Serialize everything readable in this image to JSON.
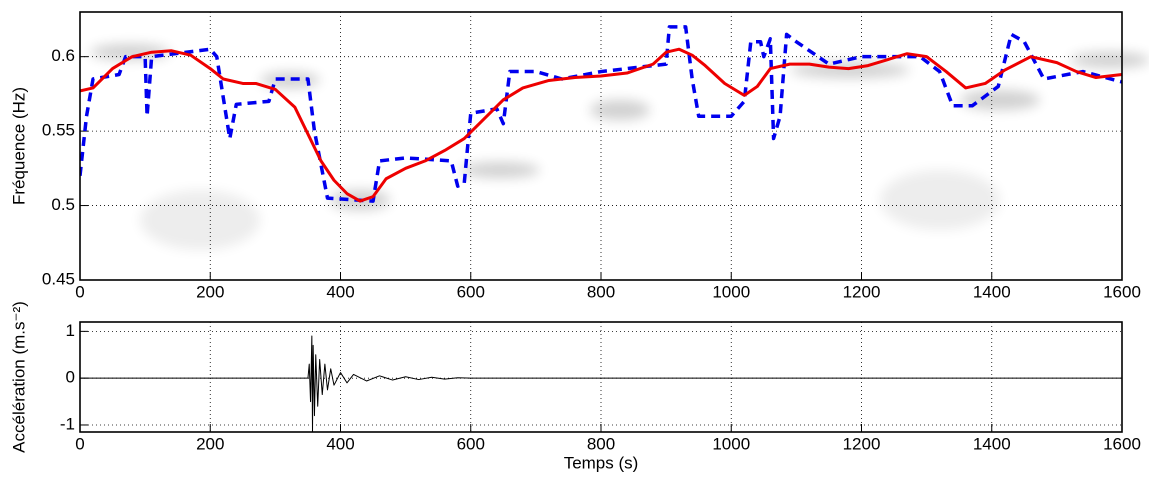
{
  "chart_data": [
    {
      "type": "line",
      "ylabel": "Fréquence (Hz)",
      "xlim": [
        0,
        1600
      ],
      "xticks": [
        0,
        200,
        400,
        600,
        800,
        1000,
        1200,
        1400,
        1600
      ],
      "ylim": [
        0.45,
        0.63
      ],
      "yticks": [
        0.45,
        0.5,
        0.55,
        0.6
      ],
      "grid": true,
      "series": [
        {
          "color": "#0000ee",
          "dashed": true,
          "x": [
            0,
            10,
            20,
            60,
            70,
            100,
            103,
            110,
            200,
            210,
            230,
            240,
            290,
            300,
            350,
            360,
            380,
            450,
            460,
            500,
            570,
            580,
            590,
            600,
            640,
            650,
            660,
            700,
            740,
            800,
            840,
            900,
            905,
            930,
            940,
            950,
            1000,
            1020,
            1030,
            1045,
            1050,
            1060,
            1065,
            1075,
            1085,
            1100,
            1150,
            1200,
            1290,
            1320,
            1340,
            1370,
            1410,
            1430,
            1450,
            1480,
            1540,
            1600
          ],
          "values": [
            0.52,
            0.56,
            0.585,
            0.588,
            0.6,
            0.6,
            0.56,
            0.6,
            0.605,
            0.6,
            0.545,
            0.568,
            0.57,
            0.585,
            0.585,
            0.55,
            0.505,
            0.503,
            0.53,
            0.532,
            0.53,
            0.513,
            0.515,
            0.562,
            0.565,
            0.555,
            0.59,
            0.59,
            0.585,
            0.59,
            0.592,
            0.595,
            0.62,
            0.62,
            0.585,
            0.56,
            0.56,
            0.57,
            0.61,
            0.61,
            0.6,
            0.612,
            0.545,
            0.56,
            0.615,
            0.61,
            0.595,
            0.6,
            0.6,
            0.59,
            0.567,
            0.567,
            0.58,
            0.615,
            0.61,
            0.585,
            0.59,
            0.583
          ]
        },
        {
          "color": "#ee0000",
          "dashed": false,
          "x": [
            0,
            20,
            50,
            80,
            110,
            140,
            170,
            200,
            220,
            250,
            270,
            300,
            330,
            350,
            370,
            390,
            410,
            430,
            450,
            470,
            500,
            530,
            560,
            590,
            620,
            650,
            680,
            720,
            760,
            800,
            840,
            880,
            900,
            920,
            940,
            960,
            990,
            1020,
            1040,
            1060,
            1090,
            1120,
            1150,
            1180,
            1210,
            1240,
            1270,
            1300,
            1330,
            1360,
            1390,
            1420,
            1460,
            1500,
            1530,
            1560,
            1600
          ],
          "values": [
            0.577,
            0.579,
            0.592,
            0.6,
            0.603,
            0.604,
            0.601,
            0.592,
            0.585,
            0.582,
            0.582,
            0.578,
            0.566,
            0.548,
            0.53,
            0.517,
            0.508,
            0.503,
            0.506,
            0.518,
            0.525,
            0.53,
            0.537,
            0.545,
            0.558,
            0.571,
            0.579,
            0.584,
            0.586,
            0.587,
            0.589,
            0.595,
            0.603,
            0.605,
            0.601,
            0.594,
            0.582,
            0.574,
            0.58,
            0.592,
            0.595,
            0.595,
            0.593,
            0.592,
            0.594,
            0.598,
            0.602,
            0.6,
            0.59,
            0.579,
            0.582,
            0.591,
            0.6,
            0.596,
            0.59,
            0.586,
            0.588
          ]
        }
      ]
    },
    {
      "type": "line",
      "ylabel": "Accélération (m.s⁻²)",
      "xlabel": "Temps (s)",
      "xlim": [
        0,
        1600
      ],
      "xticks": [
        0,
        200,
        400,
        600,
        800,
        1000,
        1200,
        1400,
        1600
      ],
      "ylim": [
        -1.15,
        1.2
      ],
      "yticks": [
        -1,
        0,
        1
      ],
      "grid": true,
      "series": [
        {
          "color": "#000000",
          "dashed": false,
          "x": [
            0,
            350,
            352,
            354,
            356,
            357,
            358,
            360,
            362,
            365,
            368,
            372,
            376,
            380,
            385,
            390,
            400,
            410,
            420,
            440,
            460,
            480,
            500,
            520,
            540,
            560,
            580,
            600,
            1600
          ],
          "values": [
            0,
            0,
            0.3,
            -0.5,
            0.9,
            -1.15,
            0.7,
            -0.8,
            0.5,
            -0.6,
            0.4,
            -0.35,
            0.3,
            -0.25,
            0.2,
            -0.15,
            0.12,
            -0.1,
            0.08,
            -0.06,
            0.05,
            -0.04,
            0.03,
            -0.03,
            0.02,
            -0.02,
            0.01,
            0,
            0
          ]
        }
      ]
    }
  ]
}
